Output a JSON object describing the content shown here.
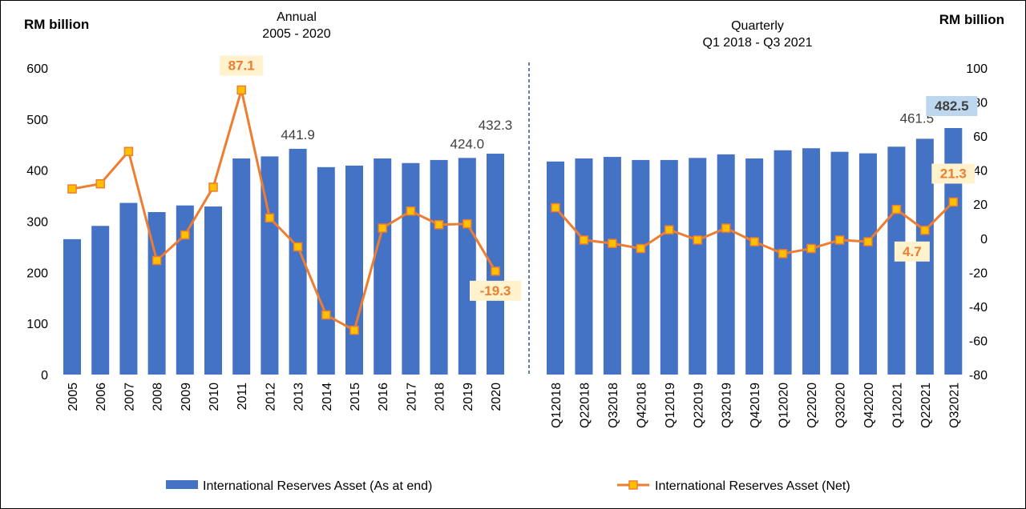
{
  "chart_data": {
    "type": "bar+line",
    "colors": {
      "bars": "#4472C4",
      "line": "#ED7D31",
      "marker_fill": "#FFC000",
      "orange_label_bg": "#FFF2CC",
      "blue_label_bg": "#BDD7EE",
      "divider": "#2F5597"
    },
    "left_panel": {
      "title": [
        "Annual",
        "2005 - 2020"
      ],
      "ylabel": "RM billion",
      "ylim": [
        0,
        600
      ],
      "yticks": [
        "0",
        "100",
        "200",
        "300",
        "400",
        "500",
        "600"
      ],
      "y2lim": [
        -80,
        100
      ],
      "categories": [
        "2005",
        "2006",
        "2007",
        "2008",
        "2009",
        "2010",
        "2011",
        "2012",
        "2013",
        "2014",
        "2015",
        "2016",
        "2017",
        "2018",
        "2019",
        "2020"
      ],
      "bars": [
        265,
        291,
        336,
        318,
        331,
        329,
        423,
        427,
        441.9,
        406,
        409,
        423,
        414,
        420,
        424.0,
        432.3
      ],
      "net": [
        29,
        32,
        51,
        -13,
        2,
        30,
        87.1,
        12,
        -5,
        -45,
        -54,
        6,
        16,
        8,
        8.5,
        -19.3
      ]
    },
    "right_panel": {
      "title": [
        "Quarterly",
        "Q1 2018 - Q3 2021"
      ],
      "ylabel": "RM billion",
      "ylim": [
        0,
        600
      ],
      "y2lim": [
        -80,
        100
      ],
      "y2ticks": [
        "100",
        "80",
        "60",
        "40",
        "20",
        "0",
        "-20",
        "-40",
        "-60",
        "-80"
      ],
      "categories": [
        "Q12018",
        "Q22018",
        "Q32018",
        "Q42018",
        "Q12019",
        "Q22019",
        "Q32019",
        "Q42019",
        "Q12020",
        "Q22020",
        "Q32020",
        "Q42020",
        "Q12021",
        "Q22021",
        "Q32021"
      ],
      "bars": [
        417,
        423,
        426,
        420,
        420,
        424,
        431,
        423,
        439,
        443,
        436,
        433,
        446,
        461.5,
        482.5
      ],
      "net": [
        18,
        -1,
        -3,
        -6,
        5,
        -1,
        6,
        -2,
        -9,
        -6,
        -1,
        -2,
        17,
        4.7,
        21.3
      ]
    },
    "annotations": [
      {
        "text": "87.1",
        "panel": "left",
        "index": 6,
        "series": "net",
        "style": "orange-box"
      },
      {
        "text": "441.9",
        "panel": "left",
        "index": 8,
        "series": "bars",
        "style": "plain"
      },
      {
        "text": "424.0",
        "panel": "left",
        "index": 14,
        "series": "bars",
        "style": "plain"
      },
      {
        "text": "432.3",
        "panel": "left",
        "index": 15,
        "series": "bars",
        "style": "plain"
      },
      {
        "text": "-19.3",
        "panel": "left",
        "index": 15,
        "series": "net",
        "style": "orange-box"
      },
      {
        "text": "461.5",
        "panel": "right",
        "index": 13,
        "series": "bars",
        "style": "plain"
      },
      {
        "text": "482.5",
        "panel": "right",
        "index": 14,
        "series": "bars",
        "style": "blue-box"
      },
      {
        "text": "4.7",
        "panel": "right",
        "index": 13,
        "series": "net",
        "style": "orange-box"
      },
      {
        "text": "21.3",
        "panel": "right",
        "index": 14,
        "series": "net",
        "style": "orange-box"
      }
    ],
    "legend": [
      "International Reserves Asset (As at end)",
      "International Reserves Asset (Net)"
    ]
  }
}
